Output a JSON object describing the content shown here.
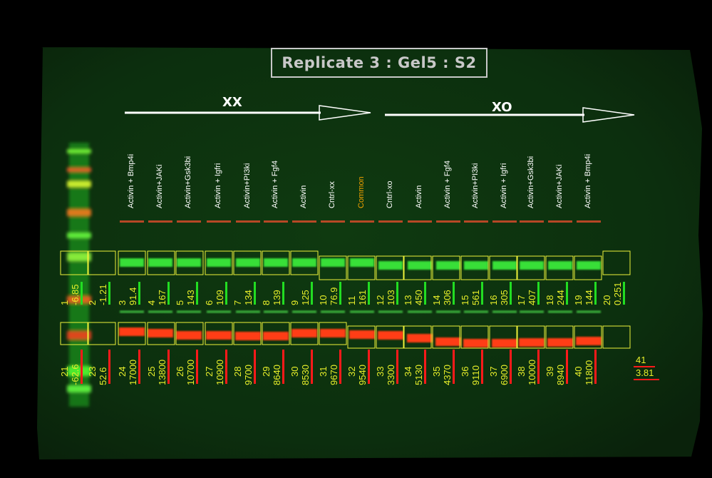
{
  "title": "Replicate 3 : Gel5 : S2",
  "groups": {
    "xx": "XX",
    "xo": "XO"
  },
  "colors": {
    "green_quant": "#e8ef2a",
    "red_underline": "#ff1a1a",
    "green_underline": "#22dd22",
    "highlight_label": "#f0a000"
  },
  "lanes": [
    {
      "label": "Activin + Bmp4i",
      "color": "#ffffff"
    },
    {
      "label": "Activin+JAKi",
      "color": "#ffffff"
    },
    {
      "label": "Activin+Gsk3bi",
      "color": "#ffffff"
    },
    {
      "label": "Activin + Igfri",
      "color": "#ffffff"
    },
    {
      "label": "Activin+PI3ki",
      "color": "#ffffff"
    },
    {
      "label": "Activin + Fgf4",
      "color": "#ffffff"
    },
    {
      "label": "Activin",
      "color": "#ffffff"
    },
    {
      "label": "Cntrl-xx",
      "color": "#ffffff"
    },
    {
      "label": "Common",
      "color": "#f0a000"
    },
    {
      "label": "Cntrl-xo",
      "color": "#ffffff"
    },
    {
      "label": "Activin",
      "color": "#ffffff"
    },
    {
      "label": "Activin + Fgf4",
      "color": "#ffffff"
    },
    {
      "label": "Activin+PI3ki",
      "color": "#ffffff"
    },
    {
      "label": "Activin + Igfri",
      "color": "#ffffff"
    },
    {
      "label": "Activin+Gsk3bi",
      "color": "#ffffff"
    },
    {
      "label": "Activin+JAKi",
      "color": "#ffffff"
    },
    {
      "label": "Activin + Bmp4i",
      "color": "#ffffff"
    }
  ],
  "green_quant": [
    {
      "id": "1",
      "val": "-6.85"
    },
    {
      "id": "2",
      "val": "-1.21"
    },
    {
      "id": "3",
      "val": "91.4"
    },
    {
      "id": "4",
      "val": "167"
    },
    {
      "id": "5",
      "val": "143"
    },
    {
      "id": "6",
      "val": "109"
    },
    {
      "id": "7",
      "val": "134"
    },
    {
      "id": "8",
      "val": "139"
    },
    {
      "id": "9",
      "val": "125"
    },
    {
      "id": "10",
      "val": "76.9"
    },
    {
      "id": "11",
      "val": "161"
    },
    {
      "id": "12",
      "val": "103"
    },
    {
      "id": "13",
      "val": "450"
    },
    {
      "id": "14",
      "val": "306"
    },
    {
      "id": "15",
      "val": "561"
    },
    {
      "id": "16",
      "val": "305"
    },
    {
      "id": "17",
      "val": "407"
    },
    {
      "id": "18",
      "val": "244"
    },
    {
      "id": "19",
      "val": "144"
    },
    {
      "id": "20",
      "val": "0.251"
    }
  ],
  "red_quant": [
    {
      "id": "21",
      "val": "-62.6"
    },
    {
      "id": "23",
      "val": "52.6"
    },
    {
      "id": "24",
      "val": "17000"
    },
    {
      "id": "25",
      "val": "13800"
    },
    {
      "id": "26",
      "val": "10700"
    },
    {
      "id": "27",
      "val": "10900"
    },
    {
      "id": "28",
      "val": "9700"
    },
    {
      "id": "29",
      "val": "8640"
    },
    {
      "id": "30",
      "val": "8530"
    },
    {
      "id": "31",
      "val": "9670"
    },
    {
      "id": "32",
      "val": "9540"
    },
    {
      "id": "33",
      "val": "3300"
    },
    {
      "id": "34",
      "val": "5130"
    },
    {
      "id": "35",
      "val": "4370"
    },
    {
      "id": "36",
      "val": "9110"
    },
    {
      "id": "37",
      "val": "6900"
    },
    {
      "id": "38",
      "val": "10000"
    },
    {
      "id": "39",
      "val": "8940"
    },
    {
      "id": "40",
      "val": "11800"
    }
  ],
  "extra": {
    "id": "41",
    "val": "3.81"
  }
}
